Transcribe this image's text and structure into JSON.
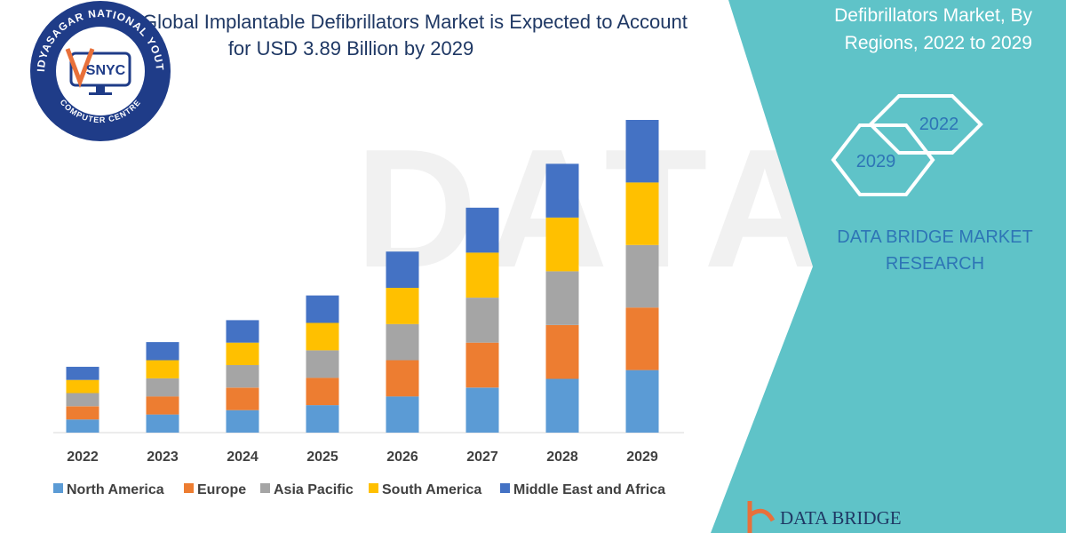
{
  "title_lines": [
    "Global Implantable Defibrillators Market is Expected to Account",
    "for USD 3.89 Billion by 2029"
  ],
  "side_panel": {
    "text_lines": [
      "Defibrillators Market, By",
      "Regions, 2022 to 2029"
    ],
    "hexagons": [
      "2022",
      "2029"
    ],
    "brand_lines": [
      "DATA BRIDGE MARKET",
      "RESEARCH"
    ],
    "bg_color": "#5fc3c8"
  },
  "badge": {
    "text_top": "VIDYASAGAR NATIONAL YOUTH",
    "text_bottom": "COMPUTER CENTRE",
    "monogram": "SNYC",
    "color": "#1f3c88"
  },
  "footer_logo_text": "DATA BRIDGE",
  "watermark": "DATA BRIDGE",
  "chart_data": {
    "type": "bar",
    "stacked": true,
    "categories": [
      "2022",
      "2023",
      "2024",
      "2025",
      "2026",
      "2027",
      "2028",
      "2029"
    ],
    "series": [
      {
        "name": "North America",
        "color": "#5b9bd5",
        "values": [
          0.24,
          0.33,
          0.41,
          0.5,
          0.66,
          0.82,
          0.98,
          1.14
        ]
      },
      {
        "name": "Europe",
        "color": "#ed7d31",
        "values": [
          0.24,
          0.33,
          0.41,
          0.5,
          0.66,
          0.82,
          0.98,
          1.14
        ]
      },
      {
        "name": "Asia Pacific",
        "color": "#a5a5a5",
        "values": [
          0.24,
          0.33,
          0.41,
          0.5,
          0.66,
          0.82,
          0.98,
          1.14
        ]
      },
      {
        "name": "South America",
        "color": "#ffc000",
        "values": [
          0.24,
          0.33,
          0.41,
          0.5,
          0.66,
          0.82,
          0.98,
          1.14
        ]
      },
      {
        "name": "Middle East and Africa",
        "color": "#4472c4",
        "values": [
          0.24,
          0.33,
          0.41,
          0.5,
          0.66,
          0.82,
          0.98,
          1.14
        ]
      }
    ],
    "legend_position": "bottom",
    "grid": false
  }
}
